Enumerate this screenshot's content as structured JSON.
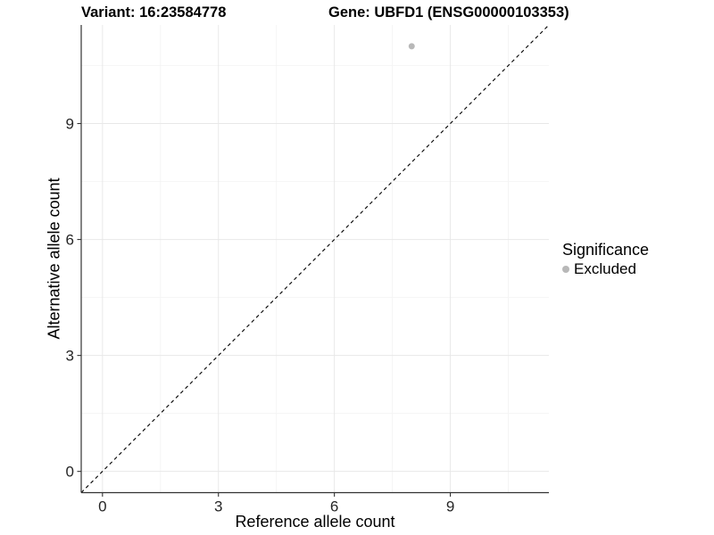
{
  "chart_data": {
    "type": "scatter",
    "title": "Variant: 16:23584778",
    "subtitle": "Gene: UBFD1 (ENSG00000103353)",
    "xlabel": "Reference allele count",
    "ylabel": "Alternative allele count",
    "xlim": [
      -0.55,
      11.55
    ],
    "ylim": [
      -0.55,
      11.55
    ],
    "xticks": [
      0,
      3,
      6,
      9
    ],
    "yticks": [
      0,
      3,
      6,
      9
    ],
    "xminor": [
      1.5,
      4.5,
      7.5,
      10.5
    ],
    "yminor": [
      1.5,
      4.5,
      7.5,
      10.5
    ],
    "grid": "major+minor",
    "points": [
      {
        "x": 8,
        "y": 11,
        "series": "Excluded"
      }
    ],
    "identity_line": {
      "show": true,
      "style": "dashed",
      "slope": 1,
      "intercept": 0
    },
    "legend": {
      "title": "Significance",
      "position": "right",
      "items": [
        {
          "label": "Excluded",
          "color": "#b8b8b8"
        }
      ]
    },
    "colors": {
      "point": "#b8b8b8",
      "grid_major": "#e8e8e8",
      "grid_minor": "#f4f4f4",
      "axis_line": "#333333",
      "tick_text": "#262626",
      "identity_line": "#000000"
    }
  }
}
